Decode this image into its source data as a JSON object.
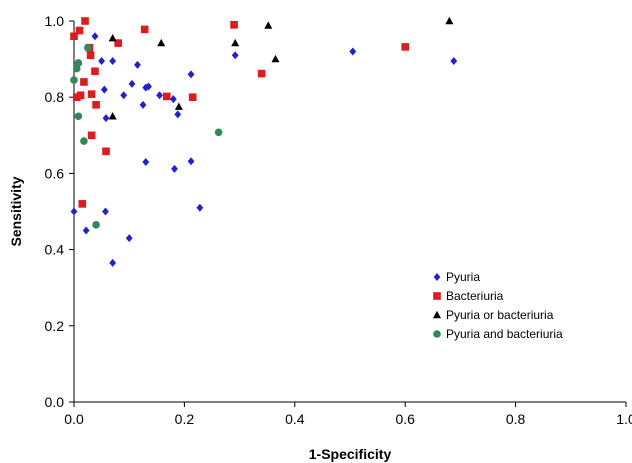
{
  "chart_data": {
    "type": "scatter",
    "title": "",
    "xlabel": "1-Specificity",
    "ylabel": "Sensitivity",
    "xlim": [
      0,
      1
    ],
    "ylim": [
      0,
      1
    ],
    "x_ticks": [
      "0.0",
      "0.2",
      "0.4",
      "0.6",
      "0.8",
      "1.0"
    ],
    "y_ticks": [
      "0.0",
      "0.2",
      "0.4",
      "0.6",
      "0.8",
      "1.0"
    ],
    "grid": false,
    "legend_position": "bottom-right",
    "series": [
      {
        "name": "Pyuria",
        "marker": "diamond",
        "color": "#1f1fe0",
        "points": [
          [
            0.0,
            0.5
          ],
          [
            0.022,
            0.45
          ],
          [
            0.038,
            0.96
          ],
          [
            0.05,
            0.895
          ],
          [
            0.055,
            0.82
          ],
          [
            0.058,
            0.745
          ],
          [
            0.057,
            0.5
          ],
          [
            0.07,
            0.895
          ],
          [
            0.07,
            0.365
          ],
          [
            0.09,
            0.805
          ],
          [
            0.1,
            0.43
          ],
          [
            0.105,
            0.835
          ],
          [
            0.115,
            0.885
          ],
          [
            0.125,
            0.78
          ],
          [
            0.13,
            0.825
          ],
          [
            0.135,
            0.828
          ],
          [
            0.13,
            0.63
          ],
          [
            0.155,
            0.805
          ],
          [
            0.18,
            0.795
          ],
          [
            0.182,
            0.612
          ],
          [
            0.188,
            0.755
          ],
          [
            0.212,
            0.86
          ],
          [
            0.212,
            0.632
          ],
          [
            0.228,
            0.51
          ],
          [
            0.292,
            0.91
          ],
          [
            0.505,
            0.92
          ],
          [
            0.688,
            0.895
          ]
        ]
      },
      {
        "name": "Bacteriuria",
        "marker": "square",
        "color": "#e01b1b",
        "points": [
          [
            0.0,
            0.96
          ],
          [
            0.005,
            0.8
          ],
          [
            0.01,
            0.975
          ],
          [
            0.012,
            0.805
          ],
          [
            0.015,
            0.52
          ],
          [
            0.018,
            0.84
          ],
          [
            0.02,
            1.0
          ],
          [
            0.028,
            0.93
          ],
          [
            0.03,
            0.91
          ],
          [
            0.032,
            0.808
          ],
          [
            0.032,
            0.7
          ],
          [
            0.038,
            0.868
          ],
          [
            0.04,
            0.78
          ],
          [
            0.058,
            0.658
          ],
          [
            0.08,
            0.942
          ],
          [
            0.128,
            0.978
          ],
          [
            0.168,
            0.802
          ],
          [
            0.215,
            0.8
          ],
          [
            0.29,
            0.99
          ],
          [
            0.34,
            0.862
          ],
          [
            0.6,
            0.932
          ]
        ]
      },
      {
        "name": "Pyuria or bacteriuria",
        "marker": "triangle",
        "color": "#000000",
        "points": [
          [
            0.07,
            0.955
          ],
          [
            0.07,
            0.75
          ],
          [
            0.158,
            0.942
          ],
          [
            0.19,
            0.775
          ],
          [
            0.292,
            0.942
          ],
          [
            0.352,
            0.988
          ],
          [
            0.365,
            0.9
          ],
          [
            0.68,
            1.0
          ]
        ]
      },
      {
        "name": "Pyuria and bacteriuria",
        "marker": "circle",
        "color": "#2e8b57",
        "points": [
          [
            0.0,
            0.845
          ],
          [
            0.005,
            0.875
          ],
          [
            0.008,
            0.89
          ],
          [
            0.008,
            0.75
          ],
          [
            0.018,
            0.685
          ],
          [
            0.025,
            0.93
          ],
          [
            0.04,
            0.465
          ],
          [
            0.262,
            0.708
          ]
        ]
      }
    ]
  }
}
